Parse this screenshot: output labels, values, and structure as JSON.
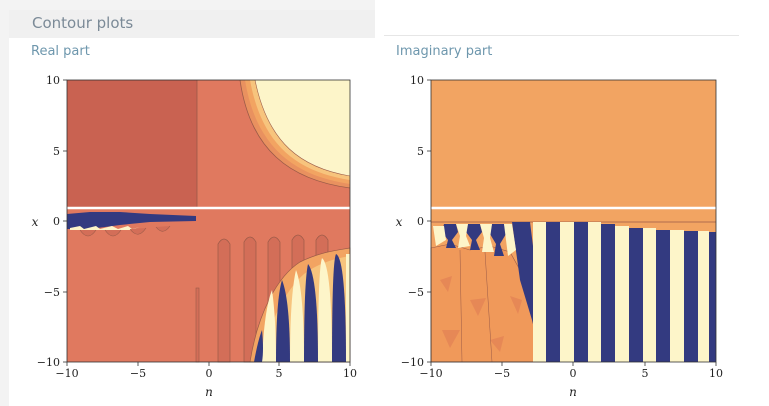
{
  "section": {
    "title": "Contour plots"
  },
  "plots": [
    {
      "subtitle": "Real part",
      "xlabel": "n",
      "ylabel": "x",
      "xticks": [
        "−10",
        "−5",
        "0",
        "5",
        "10"
      ],
      "yticks": [
        "10",
        "5",
        "0",
        "−5",
        "−10"
      ]
    },
    {
      "subtitle": "Imaginary part",
      "xlabel": "n",
      "ylabel": "x",
      "xticks": [
        "−10",
        "−5",
        "0",
        "5",
        "10"
      ],
      "yticks": [
        "10",
        "5",
        "0",
        "−5",
        "−10"
      ]
    }
  ],
  "colors": {
    "salmon": "#e0795f",
    "brick": "#c96251",
    "orange": "#f2a462",
    "cream": "#fdf5c9",
    "navy": "#333a80",
    "boundary": "#9a5a48"
  }
}
